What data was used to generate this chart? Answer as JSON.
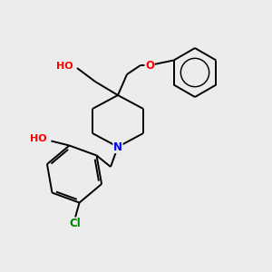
{
  "bg_color": "#ececec",
  "atom_colors": {
    "O": "#ff0000",
    "N": "#0000ff",
    "Cl": "#008000",
    "C": "#000000",
    "H": "#777777"
  },
  "bond_color": "#000000",
  "bond_width": 1.4,
  "font_size_atom": 8.5,
  "fig_size": [
    3.0,
    3.0
  ],
  "dpi": 100,
  "xlim": [
    0,
    300
  ],
  "ylim": [
    0,
    300
  ]
}
